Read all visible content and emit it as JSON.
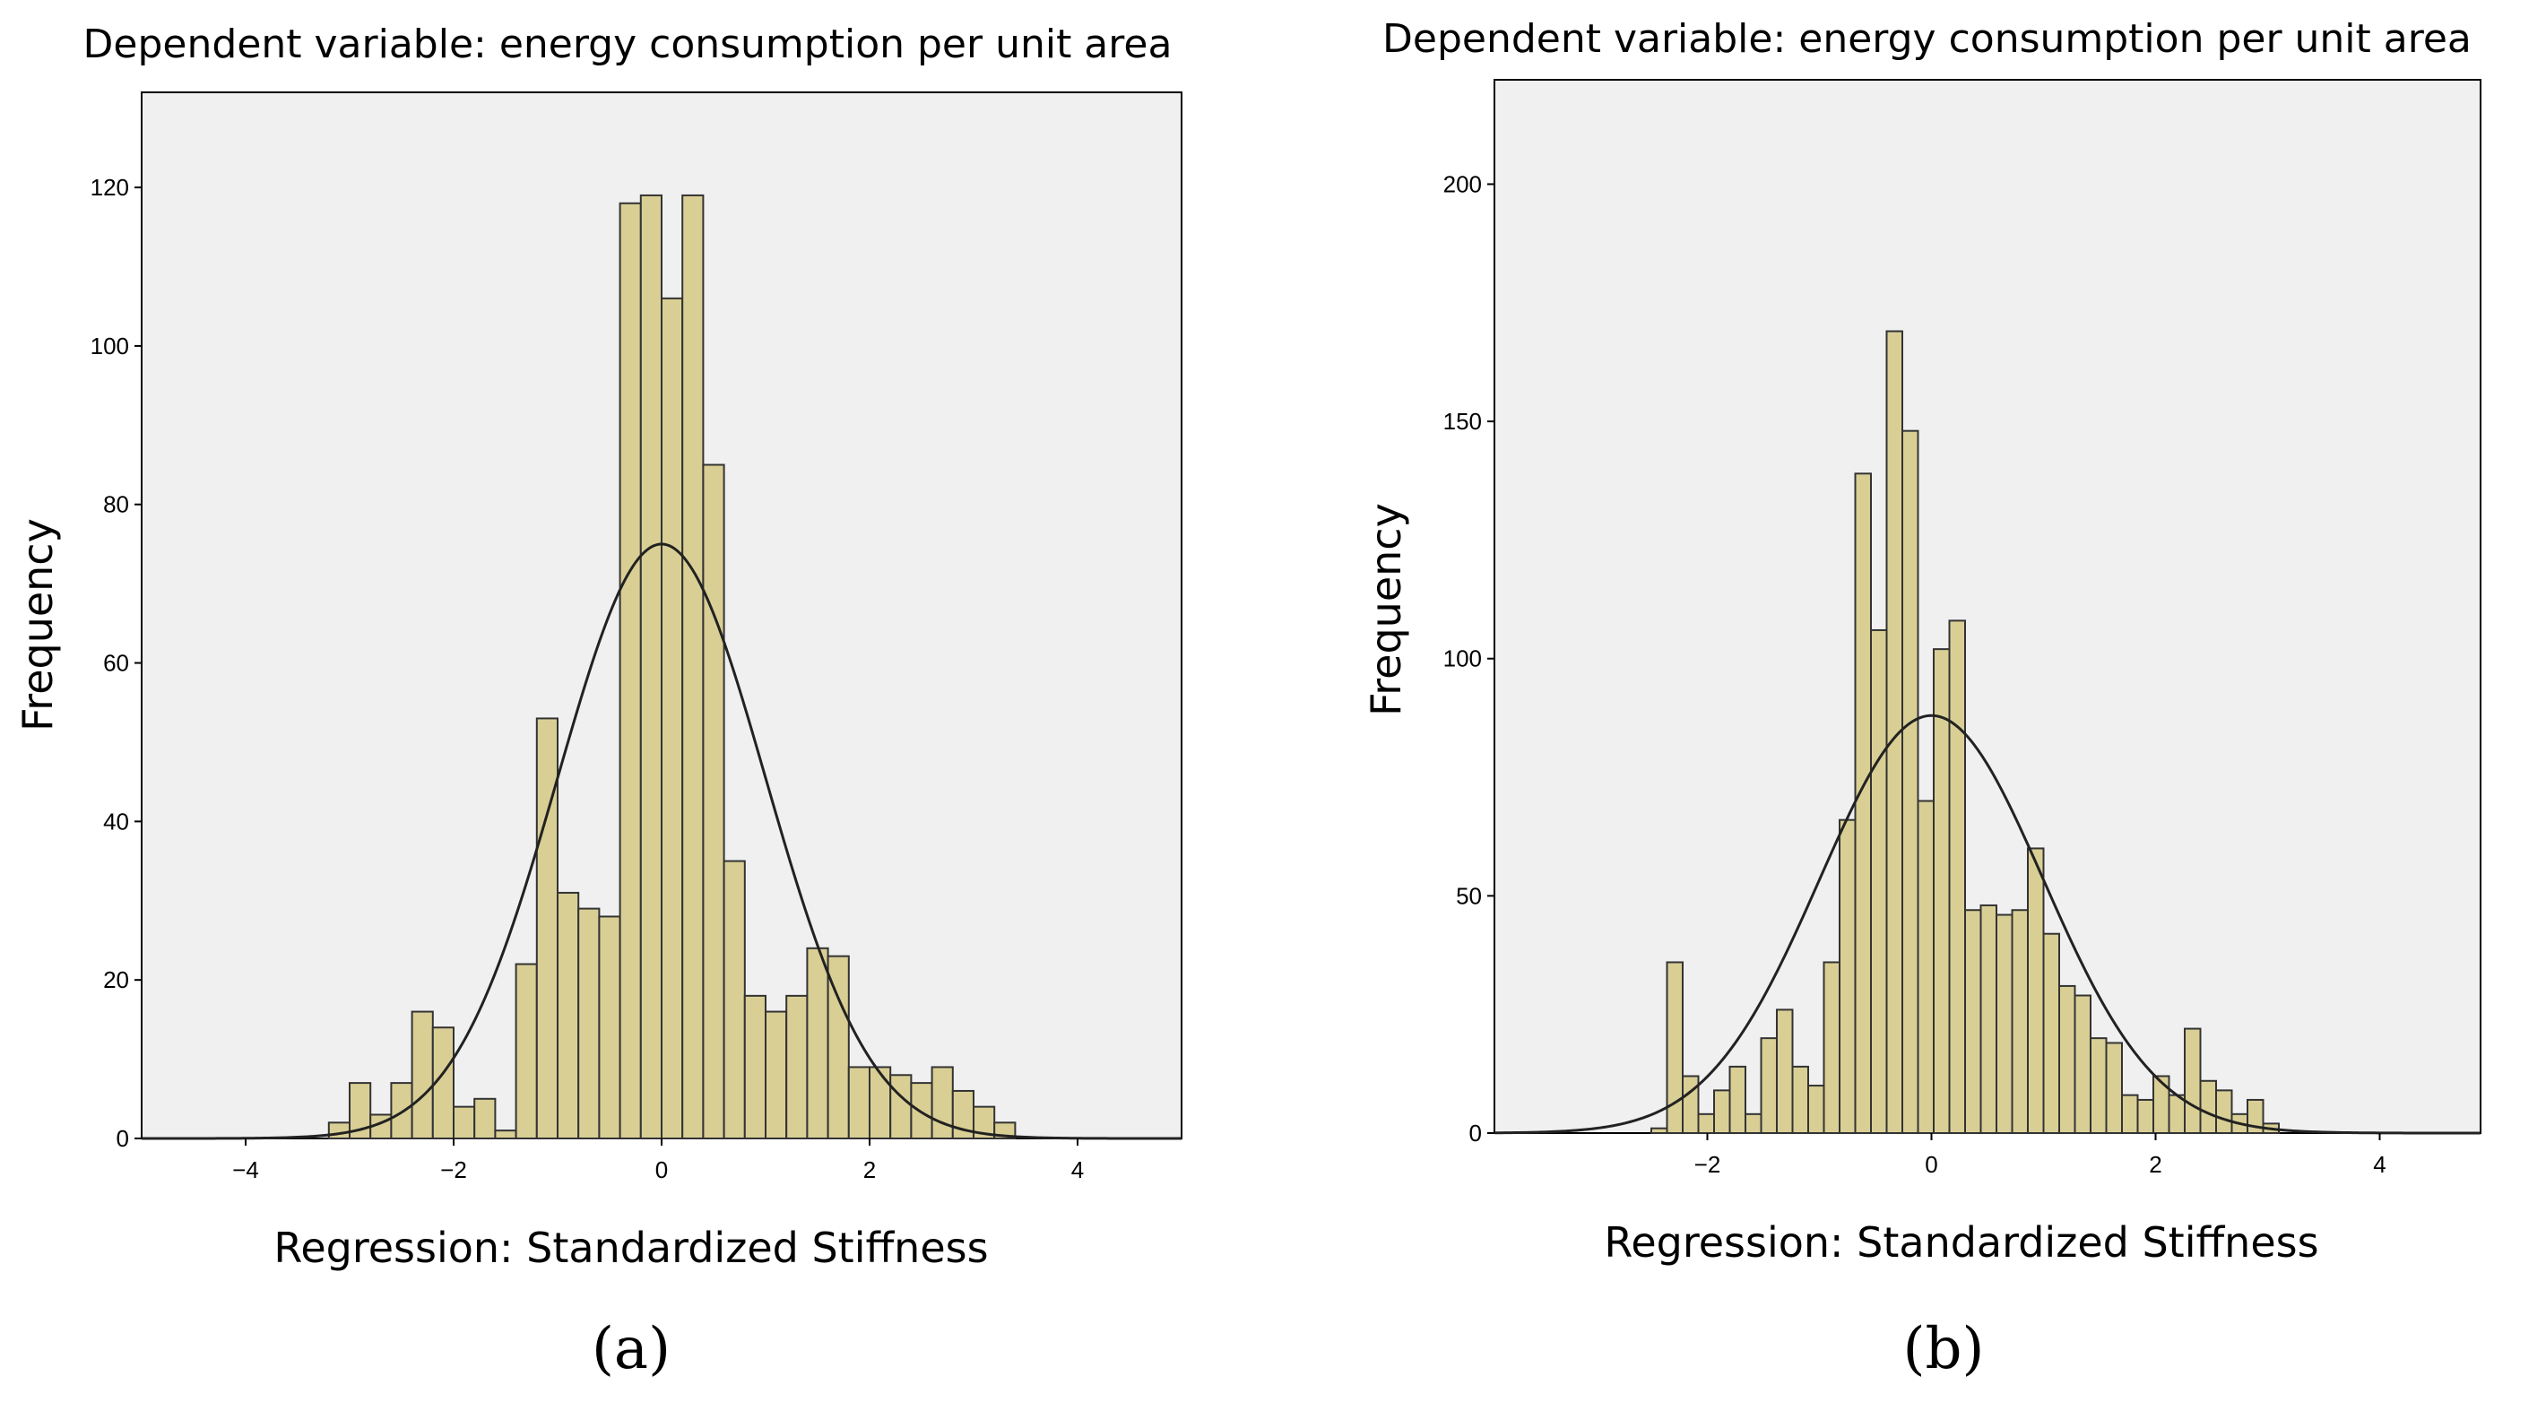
{
  "colors": {
    "plot_background": "#f0f0f0",
    "bar_fill": "#d9cf95",
    "bar_stroke": "#333333",
    "curve": "#222222",
    "axis": "#000000"
  },
  "chart_data": [
    {
      "type": "bar",
      "panel_label": "(a)",
      "title": "Dependent variable: energy consumption per unit area",
      "xlabel": "Regression: Standardized Stiffness",
      "ylabel": "Frequency",
      "xlim": [
        -5,
        5
      ],
      "ylim": [
        0,
        132
      ],
      "xticks": [
        -4,
        -2,
        0,
        2,
        4
      ],
      "xtick_labels": [
        "−4",
        "−2",
        "0",
        "2",
        "4"
      ],
      "yticks": [
        0,
        20,
        40,
        60,
        80,
        100,
        120
      ],
      "ytick_labels": [
        "0",
        "20",
        "40",
        "60",
        "80",
        "100",
        "120"
      ],
      "bin_start": -3.2,
      "bin_width": 0.2,
      "values": [
        2,
        7,
        3,
        7,
        16,
        14,
        4,
        5,
        1,
        22,
        53,
        31,
        29,
        28,
        118,
        119,
        106,
        119,
        85,
        35,
        18,
        16,
        18,
        24,
        23,
        9,
        9,
        8,
        7,
        9,
        6,
        4,
        2
      ],
      "normal_curve": {
        "mean": 0,
        "peak": 75,
        "sd": 1.0
      },
      "grid": false,
      "legend": "none"
    },
    {
      "type": "bar",
      "panel_label": "(b)",
      "title": "Dependent variable: energy consumption per unit area",
      "xlabel": "Regression: Standardized Stiffness",
      "ylabel": "Frequency",
      "xlim": [
        -3.9,
        4.9
      ],
      "ylim": [
        0,
        222
      ],
      "xticks": [
        -2,
        0,
        2,
        4
      ],
      "xtick_labels": [
        "−2",
        "0",
        "2",
        "4"
      ],
      "yticks": [
        0,
        50,
        100,
        150,
        200
      ],
      "ytick_labels": [
        "0",
        "50",
        "100",
        "150",
        "200"
      ],
      "bin_start": -2.5,
      "bin_width": 0.14,
      "values": [
        1,
        36,
        12,
        4,
        9,
        14,
        4,
        20,
        26,
        14,
        10,
        36,
        66,
        139,
        106,
        169,
        148,
        70,
        102,
        108,
        47,
        48,
        46,
        47,
        60,
        42,
        31,
        29,
        20,
        19,
        8,
        7,
        12,
        8,
        22,
        11,
        9,
        4,
        7,
        2
      ],
      "normal_curve": {
        "mean": 0,
        "peak": 88,
        "sd": 1.0
      },
      "grid": false,
      "legend": "none"
    }
  ]
}
